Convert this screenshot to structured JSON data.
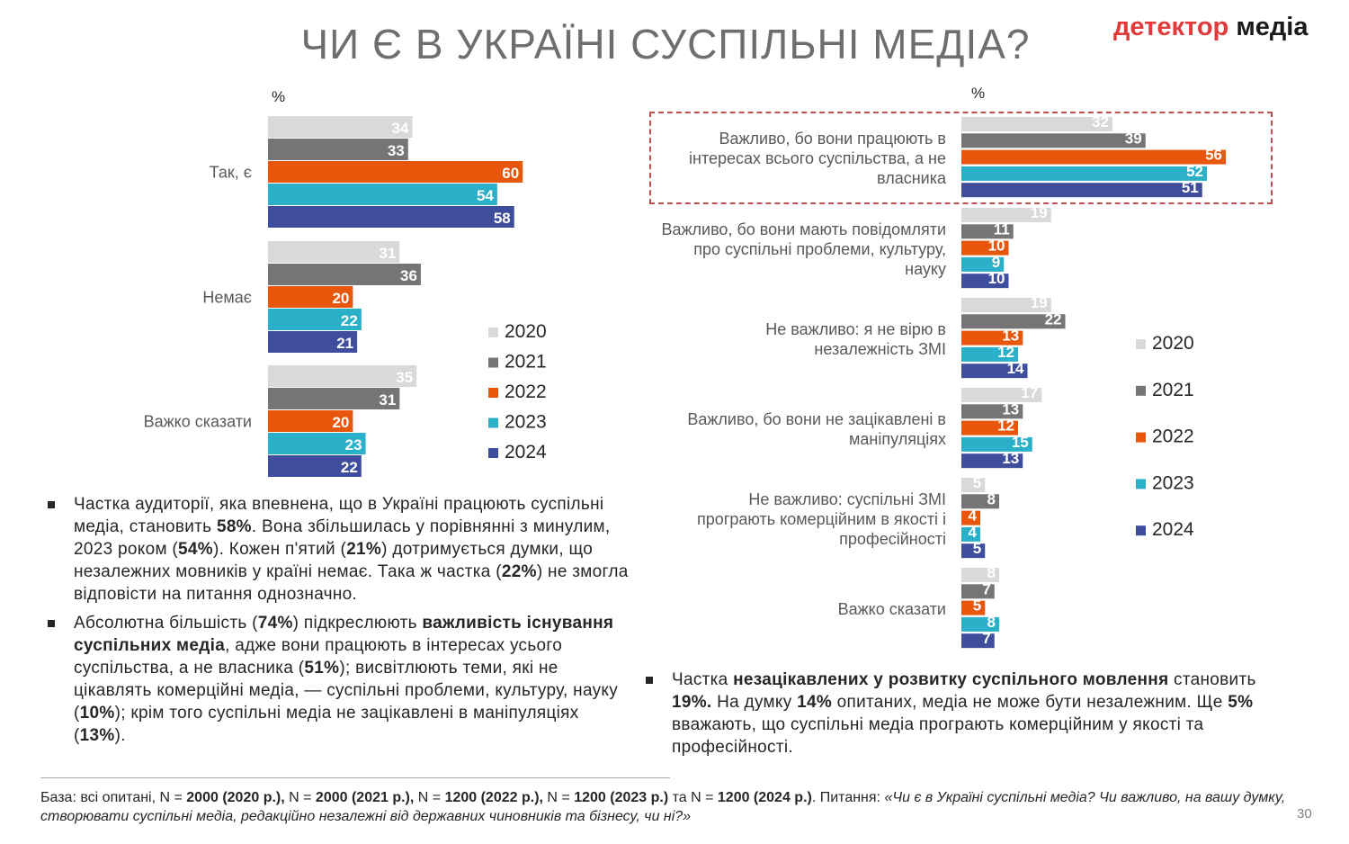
{
  "header": {
    "title": "ЧИ Є В УКРАЇНІ СУСПІЛЬНІ МЕДІА?",
    "logo_part1": "детектор",
    "logo_part2": "медіа"
  },
  "colors": {
    "2020": "#d9d9d9",
    "2021": "#757575",
    "2022": "#e8560c",
    "2023": "#2bb0c9",
    "2024": "#3e4e9c",
    "highlight_border": "#c0504d"
  },
  "chart_data": [
    {
      "type": "bar",
      "orientation": "horizontal",
      "unit_label": "%",
      "categories": [
        "Так, є",
        "Немає",
        "Важко сказати"
      ],
      "series": [
        {
          "name": "2020",
          "values": [
            34,
            31,
            35
          ]
        },
        {
          "name": "2021",
          "values": [
            33,
            36,
            31
          ]
        },
        {
          "name": "2022",
          "values": [
            60,
            20,
            20
          ]
        },
        {
          "name": "2023",
          "values": [
            54,
            22,
            23
          ]
        },
        {
          "name": "2024",
          "values": [
            58,
            21,
            22
          ]
        }
      ],
      "legend": [
        "2020",
        "2021",
        "2022",
        "2023",
        "2024"
      ],
      "legend_position": "right",
      "data_labels": true,
      "grid": false
    },
    {
      "type": "bar",
      "orientation": "horizontal",
      "unit_label": "%",
      "categories": [
        "Важливо, бо вони працюють в інтересах всього суспільства, а не власника",
        "Важливо, бо вони мають повідомляти про  суспільні проблеми, культуру, науку",
        "Не важливо: я не вірю в незалежність ЗМІ",
        "Важливо, бо вони не зацікавлені в маніпуляціях",
        "Не важливо: суспільні ЗМІ програють комерційним в якості і професійності",
        "Важко сказати"
      ],
      "series": [
        {
          "name": "2020",
          "values": [
            32,
            19,
            19,
            17,
            5,
            8
          ]
        },
        {
          "name": "2021",
          "values": [
            39,
            11,
            22,
            13,
            8,
            7
          ]
        },
        {
          "name": "2022",
          "values": [
            56,
            10,
            13,
            12,
            4,
            5
          ]
        },
        {
          "name": "2023",
          "values": [
            52,
            9,
            12,
            15,
            4,
            8
          ]
        },
        {
          "name": "2024",
          "values": [
            51,
            10,
            14,
            13,
            5,
            7
          ]
        }
      ],
      "legend": [
        "2020",
        "2021",
        "2022",
        "2023",
        "2024"
      ],
      "legend_position": "right",
      "data_labels": true,
      "grid": false
    }
  ],
  "left_text": [
    {
      "segments": [
        {
          "text": "Частка аудиторії, яка впевнена, що в Україні працюють суспільні медіа, становить ",
          "bold": false
        },
        {
          "text": "58%",
          "bold": true
        },
        {
          "text": ". Вона збільшилась у порівнянні з минулим, 2023 роком (",
          "bold": false
        },
        {
          "text": "54%",
          "bold": true
        },
        {
          "text": "). Кожен п'ятий (",
          "bold": false
        },
        {
          "text": "21%",
          "bold": true
        },
        {
          "text": ") дотримується думки, що незалежних мовників у країні немає. Така ж частка (",
          "bold": false
        },
        {
          "text": "22%",
          "bold": true
        },
        {
          "text": ") не змогла відповісти на питання однозначно.",
          "bold": false
        }
      ]
    },
    {
      "segments": [
        {
          "text": "Абсолютна більшість (",
          "bold": false
        },
        {
          "text": "74%",
          "bold": true
        },
        {
          "text": ") підкреслюють ",
          "bold": false
        },
        {
          "text": "важливість існування суспільних медіа",
          "bold": true
        },
        {
          "text": ", адже вони працюють в інтересах усього суспільства, а не власника (",
          "bold": false
        },
        {
          "text": "51%",
          "bold": true
        },
        {
          "text": "); висвітлюють теми, які не цікавлять комерційні медіа, — суспільні проблеми, культуру, науку (",
          "bold": false
        },
        {
          "text": "10%",
          "bold": true
        },
        {
          "text": "); крім того суспільні медіа не зацікавлені в маніпуляціях (",
          "bold": false
        },
        {
          "text": "13%",
          "bold": true
        },
        {
          "text": ").",
          "bold": false
        }
      ]
    }
  ],
  "right_text": [
    {
      "segments": [
        {
          "text": "Частка ",
          "bold": false
        },
        {
          "text": "незацікавлених у розвитку суспільного мовлення",
          "bold": true
        },
        {
          "text": " становить ",
          "bold": false
        },
        {
          "text": "19%.",
          "bold": true
        },
        {
          "text": " На думку ",
          "bold": false
        },
        {
          "text": "14%",
          "bold": true
        },
        {
          "text": " опитаних, медіа не може бути незалежним. Ще ",
          "bold": false
        },
        {
          "text": "5%",
          "bold": true
        },
        {
          "text": " вважають, що суспільні медіа програють комерційним у якості та професійності.",
          "bold": false
        }
      ]
    }
  ],
  "footnote": {
    "segments": [
      {
        "text": "База: всі опитані, N = ",
        "style": "normal"
      },
      {
        "text": "2000 (2020 р.),",
        "style": "bold"
      },
      {
        "text": " N = ",
        "style": "normal"
      },
      {
        "text": "2000 (2021 р.),",
        "style": "bold"
      },
      {
        "text": " N = ",
        "style": "normal"
      },
      {
        "text": "1200 (2022 р.),",
        "style": "bold"
      },
      {
        "text": " N = ",
        "style": "normal"
      },
      {
        "text": "1200 (2023 р.)",
        "style": "bold"
      },
      {
        "text": " та N = ",
        "style": "normal"
      },
      {
        "text": "1200 (2024 р.)",
        "style": "bold"
      },
      {
        "text": ". Питання: ",
        "style": "normal"
      },
      {
        "text": "«Чи є в Україні суспільні медіа? Чи важливо, на вашу думку, створювати суспільні медіа, редакційно незалежні від державних чиновників та бізнесу, чи ні?»",
        "style": "italic"
      }
    ]
  },
  "page_number": "30"
}
